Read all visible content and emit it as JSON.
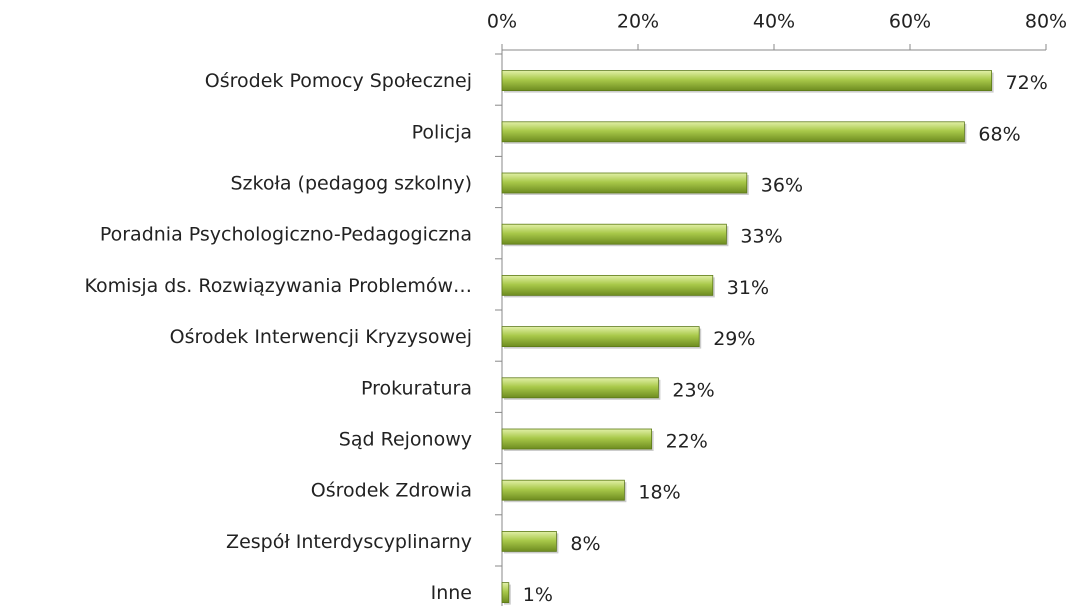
{
  "chart_data": {
    "type": "bar",
    "orientation": "horizontal",
    "categories": [
      "Ośrodek Pomocy Społecznej",
      "Policja",
      "Szkoła (pedagog szkolny)",
      "Poradnia Psychologiczno-Pedagogiczna",
      "Komisja ds. Rozwiązywania Problemów…",
      "Ośrodek Interwencji Kryzysowej",
      "Prokuratura",
      "Sąd Rejonowy",
      "Ośrodek Zdrowia",
      "Zespół Interdyscyplinarny",
      "Inne"
    ],
    "values": [
      72,
      68,
      36,
      33,
      31,
      29,
      23,
      22,
      18,
      8,
      1
    ],
    "value_labels": [
      "72%",
      "68%",
      "36%",
      "33%",
      "31%",
      "29%",
      "23%",
      "22%",
      "18%",
      "8%",
      "1%"
    ],
    "color": "#9bbb3b",
    "xlim": [
      0,
      80
    ],
    "xticks": [
      {
        "value": 0,
        "label": "0%"
      },
      {
        "value": 20,
        "label": "20%"
      },
      {
        "value": 40,
        "label": "40%"
      },
      {
        "value": 60,
        "label": "60%"
      },
      {
        "value": 80,
        "label": "80%"
      }
    ]
  }
}
